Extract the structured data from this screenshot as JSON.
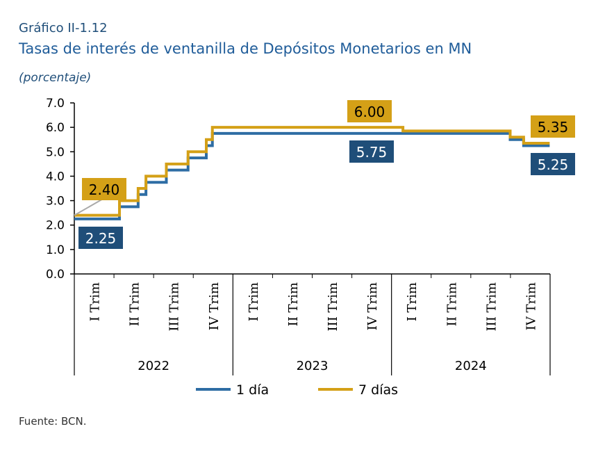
{
  "header": {
    "supertitle": "Gráfico II-1.12",
    "title": "Tasas de interés de ventanilla de Depósitos Monetarios en MN",
    "unit": "(porcentaje)"
  },
  "footer": {
    "source": "Fuente: BCN."
  },
  "chart_data": {
    "type": "line",
    "step": true,
    "title": "Tasas de interés de ventanilla de Depósitos Monetarios en MN",
    "ylabel": "(porcentaje)",
    "ylim": [
      0,
      7
    ],
    "yticks": [
      "0.0",
      "1.0",
      "2.0",
      "3.0",
      "4.0",
      "5.0",
      "6.0",
      "7.0"
    ],
    "xlim": [
      "2022-01-01",
      "2025-01-01"
    ],
    "quarter_labels": [
      "I Trim",
      "II Trim",
      "III Trim",
      "IV Trim"
    ],
    "years": [
      "2022",
      "2023",
      "2024"
    ],
    "grid": false,
    "legend": "bottom",
    "series": [
      {
        "name": "1 día",
        "color": "#2e6da4",
        "points": [
          [
            "2022-01-01",
            2.25
          ],
          [
            "2022-04-15",
            2.75
          ],
          [
            "2022-05-28",
            3.25
          ],
          [
            "2022-06-15",
            3.75
          ],
          [
            "2022-08-01",
            4.25
          ],
          [
            "2022-09-20",
            4.75
          ],
          [
            "2022-11-01",
            5.25
          ],
          [
            "2022-11-15",
            5.75
          ],
          [
            "2024-10-01",
            5.5
          ],
          [
            "2024-11-01",
            5.25
          ],
          [
            "2024-12-31",
            5.25
          ]
        ]
      },
      {
        "name": "7 días",
        "color": "#d4a017",
        "points": [
          [
            "2022-01-01",
            2.4
          ],
          [
            "2022-04-15",
            3.0
          ],
          [
            "2022-05-28",
            3.5
          ],
          [
            "2022-06-15",
            4.0
          ],
          [
            "2022-08-01",
            4.5
          ],
          [
            "2022-09-20",
            5.0
          ],
          [
            "2022-11-01",
            5.5
          ],
          [
            "2022-11-15",
            6.0
          ],
          [
            "2024-01-28",
            5.85
          ],
          [
            "2024-10-01",
            5.6
          ],
          [
            "2024-11-01",
            5.35
          ],
          [
            "2024-12-31",
            5.35
          ]
        ]
      }
    ],
    "annotations": [
      {
        "text": "2.40",
        "series": "7 días"
      },
      {
        "text": "2.25",
        "series": "1 día"
      },
      {
        "text": "6.00",
        "series": "7 días"
      },
      {
        "text": "5.75",
        "series": "1 día"
      },
      {
        "text": "5.35",
        "series": "7 días"
      },
      {
        "text": "5.25",
        "series": "1 día"
      }
    ]
  }
}
